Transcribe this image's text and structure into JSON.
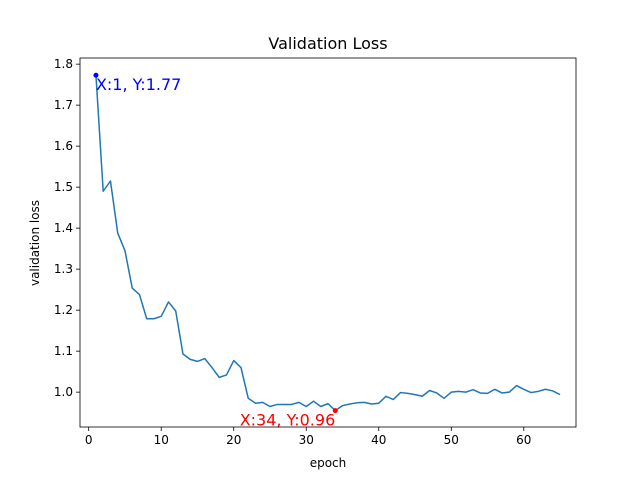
{
  "chart_data": {
    "type": "line",
    "title": "Validation Loss",
    "xlabel": "epoch",
    "ylabel": "validation loss",
    "xlim": [
      -1.2,
      67.2
    ],
    "ylim": [
      0.915,
      1.815
    ],
    "x_ticks": [
      0,
      10,
      20,
      30,
      40,
      50,
      60
    ],
    "x_tick_labels": [
      "0",
      "10",
      "20",
      "30",
      "40",
      "50",
      "60"
    ],
    "y_ticks": [
      1.0,
      1.1,
      1.2,
      1.3,
      1.4,
      1.5,
      1.6,
      1.7,
      1.8
    ],
    "y_tick_labels": [
      "1.0",
      "1.1",
      "1.2",
      "1.3",
      "1.4",
      "1.5",
      "1.6",
      "1.7",
      "1.8"
    ],
    "grid": false,
    "line_color": "#1f77b4",
    "series": [
      {
        "x": [
          1,
          2,
          3,
          4,
          5,
          6,
          7,
          8,
          9,
          10,
          11,
          12,
          13,
          14,
          15,
          16,
          17,
          18,
          19,
          20,
          21,
          22,
          23,
          24,
          25,
          26,
          27,
          28,
          29,
          30,
          31,
          32,
          33,
          34,
          35,
          36,
          37,
          38,
          39,
          40,
          41,
          42,
          43,
          44,
          45,
          46,
          47,
          48,
          49,
          50,
          51,
          52,
          53,
          54,
          55,
          56,
          57,
          58,
          59,
          60,
          61,
          62,
          63,
          64,
          65
        ],
        "y": [
          1.773,
          1.49,
          1.515,
          1.388,
          1.345,
          1.254,
          1.238,
          1.179,
          1.179,
          1.185,
          1.22,
          1.198,
          1.093,
          1.08,
          1.075,
          1.082,
          1.06,
          1.036,
          1.042,
          1.077,
          1.06,
          0.985,
          0.973,
          0.975,
          0.965,
          0.97,
          0.97,
          0.97,
          0.975,
          0.965,
          0.978,
          0.965,
          0.972,
          0.955,
          0.967,
          0.971,
          0.974,
          0.975,
          0.971,
          0.973,
          0.99,
          0.982,
          0.999,
          0.997,
          0.994,
          0.99,
          1.004,
          0.998,
          0.985,
          1.0,
          1.002,
          1.0,
          1.006,
          0.998,
          0.997,
          1.007,
          0.998,
          1.0,
          1.016,
          1.007,
          0.999,
          1.002,
          1.007,
          1.003,
          0.994
        ]
      }
    ],
    "annotations": [
      {
        "text": "X:1, Y:1.77",
        "x": 1,
        "y": 1.773,
        "color": "#0000ff"
      },
      {
        "text": "X:34, Y:0.96",
        "x": 34,
        "y": 0.955,
        "color": "#ff0000"
      }
    ]
  }
}
